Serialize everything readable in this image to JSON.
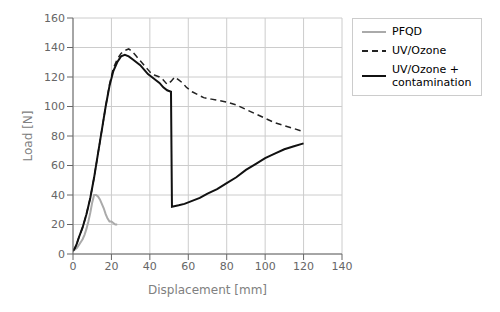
{
  "chart_data": {
    "type": "line",
    "xlabel": "Displacement [mm]",
    "ylabel": "Load [N]",
    "xlim": [
      0,
      140
    ],
    "ylim": [
      0,
      160
    ],
    "xticks": [
      0,
      20,
      40,
      60,
      80,
      100,
      120,
      140
    ],
    "yticks": [
      0,
      20,
      40,
      60,
      80,
      100,
      120,
      140,
      160
    ],
    "grid": true,
    "legend": "upper right",
    "series": [
      {
        "name": "PFQD",
        "color": "#aaaaaa",
        "line_style": "solid",
        "x": [
          0,
          1,
          2,
          3,
          4,
          5,
          6,
          7,
          8,
          9,
          10,
          11,
          12,
          13,
          14,
          15,
          16,
          17,
          18,
          19,
          20,
          21,
          22,
          23
        ],
        "values": [
          2,
          3,
          4,
          6,
          8,
          10,
          13,
          17,
          22,
          28,
          35,
          40,
          40,
          39,
          37,
          34,
          31,
          27,
          24,
          22,
          22,
          21,
          20,
          20
        ]
      },
      {
        "name": "UV/Ozone",
        "color": "#222222",
        "line_style": "dashed",
        "x": [
          0,
          1,
          2,
          3,
          5,
          7,
          9,
          11,
          13,
          15,
          17,
          19,
          21,
          23,
          25,
          27,
          29,
          31,
          33,
          35,
          37,
          39,
          41,
          43,
          45,
          47,
          49,
          51,
          53,
          55,
          57,
          59,
          62,
          65,
          68,
          72,
          76,
          80,
          85,
          90,
          95,
          100,
          105,
          110,
          115,
          120
        ],
        "values": [
          2,
          4,
          7,
          11,
          18,
          27,
          38,
          52,
          68,
          84,
          100,
          115,
          126,
          132,
          136,
          138,
          139,
          137,
          134,
          131,
          128,
          125,
          122,
          121,
          120,
          118,
          115,
          117,
          120,
          118,
          116,
          113,
          110,
          108,
          106,
          105,
          104,
          103,
          101,
          98,
          95,
          92,
          89,
          87,
          85,
          83
        ]
      },
      {
        "name": "UV/Ozone +\ncontamination",
        "color": "#111111",
        "line_style": "solid",
        "x": [
          0,
          1,
          2,
          3,
          5,
          7,
          9,
          11,
          13,
          15,
          17,
          19,
          21,
          23,
          25,
          27,
          29,
          31,
          33,
          35,
          37,
          39,
          41,
          43,
          45,
          47,
          49,
          51,
          51.5,
          55,
          58,
          62,
          66,
          70,
          75,
          80,
          85,
          90,
          95,
          100,
          105,
          110,
          115,
          120
        ],
        "values": [
          2,
          4,
          7,
          11,
          18,
          27,
          38,
          52,
          68,
          84,
          100,
          114,
          124,
          130,
          134,
          135,
          134,
          132,
          130,
          128,
          125,
          122,
          120,
          118,
          116,
          113,
          111,
          110,
          32,
          33,
          34,
          36,
          38,
          41,
          44,
          48,
          52,
          57,
          61,
          65,
          68,
          71,
          73,
          75
        ]
      }
    ]
  }
}
